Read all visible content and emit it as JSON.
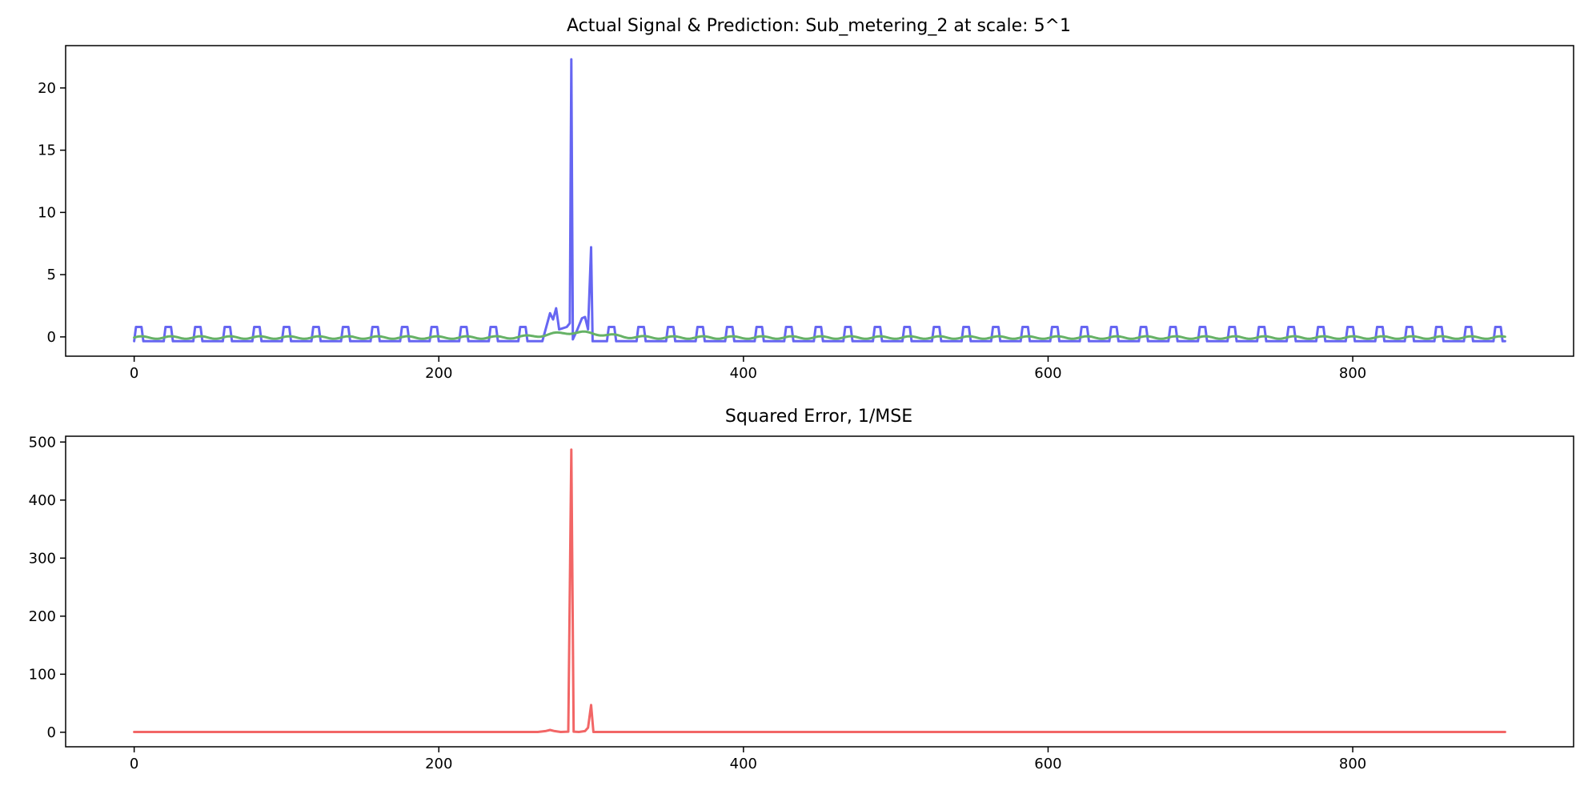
{
  "chart_data": [
    {
      "type": "line",
      "title": "Actual Signal & Prediction: Sub_metering_2 at scale: 5^1",
      "xlabel": "",
      "ylabel": "",
      "xlim": [
        -45,
        945
      ],
      "ylim": [
        -1.55,
        23.4
      ],
      "xticks": [
        0,
        200,
        400,
        600,
        800
      ],
      "yticks": [
        0,
        5,
        10,
        15,
        20
      ],
      "grid": false,
      "series": [
        {
          "color": "#6666f2",
          "style": "rect-pulse-train",
          "period": 19.4,
          "x_start": 0,
          "x_end": 900,
          "baseline": -0.35,
          "pulse_high": 0.8,
          "pulse_width": 6,
          "excursion": [
            [
              268,
              -0.35
            ],
            [
              273,
              1.9
            ],
            [
              275,
              1.4
            ],
            [
              277,
              2.3
            ],
            [
              279,
              0.6
            ],
            [
              284,
              0.8
            ],
            [
              286,
              1.1
            ],
            [
              287,
              22.3
            ],
            [
              288,
              -0.2
            ],
            [
              291,
              0.6
            ],
            [
              294,
              1.5
            ],
            [
              296,
              1.6
            ],
            [
              298,
              0.6
            ],
            [
              300,
              7.2
            ],
            [
              301,
              -0.35
            ],
            [
              306,
              -0.35
            ]
          ]
        },
        {
          "color": "#66b266",
          "style": "smooth-wave",
          "x_start": 0,
          "x_end": 900,
          "base": -0.05,
          "amplitude": 0.1,
          "period": 19.4,
          "bump_center": 290,
          "bump_height": 0.4,
          "bump_width": 25
        }
      ]
    },
    {
      "type": "line",
      "title": "Squared Error, 1/MSE",
      "xlabel": "",
      "ylabel": "",
      "xlim": [
        -45,
        945
      ],
      "ylim": [
        -25,
        510
      ],
      "xticks": [
        0,
        200,
        400,
        600,
        800
      ],
      "yticks": [
        0,
        100,
        200,
        300,
        400,
        500
      ],
      "grid": false,
      "series": [
        {
          "color": "#f26666",
          "style": "polyline",
          "points": [
            [
              0,
              0.5
            ],
            [
              100,
              0.5
            ],
            [
              200,
              0.5
            ],
            [
              265,
              0.5
            ],
            [
              270,
              2
            ],
            [
              273,
              4
            ],
            [
              276,
              2
            ],
            [
              280,
              0.5
            ],
            [
              285,
              1
            ],
            [
              287,
              487
            ],
            [
              288.5,
              1
            ],
            [
              292,
              0.5
            ],
            [
              296,
              2
            ],
            [
              298,
              8
            ],
            [
              300,
              47
            ],
            [
              301.5,
              0.5
            ],
            [
              310,
              0.5
            ],
            [
              500,
              0.5
            ],
            [
              700,
              0.5
            ],
            [
              900,
              0.5
            ]
          ]
        }
      ]
    }
  ]
}
